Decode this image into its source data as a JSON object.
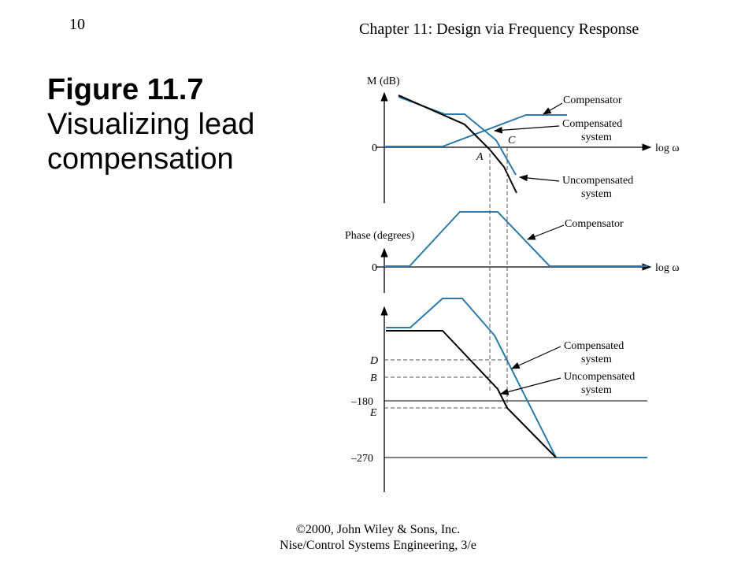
{
  "slide_number": "10",
  "chapter_title": "Chapter 11: Design via Frequency Response",
  "figure": {
    "label": "Figure 11.7",
    "caption_line1": "Visualizing lead",
    "caption_line2": "compensation"
  },
  "footer": {
    "line1": "©2000, John Wiley & Sons, Inc.",
    "line2": "Nise/Control Systems Engineering, 3/e"
  },
  "magnitude_plot": {
    "y_axis_label_var": "M",
    "y_axis_label_unit": " (dB)",
    "zero_label": "0",
    "x_axis_label": "log ",
    "x_axis_symbol": "ω",
    "point_A": "A",
    "point_C": "C",
    "compensator_label": "Compensator",
    "compensated_label_1": "Compensated",
    "compensated_label_2": "system",
    "uncompensated_label_1": "Uncompensated",
    "uncompensated_label_2": "system"
  },
  "phase_plot_1": {
    "y_axis_label": "Phase (degrees)",
    "zero_label": "0",
    "x_axis_label": "log ",
    "x_axis_symbol": "ω",
    "compensator_label": "Compensator"
  },
  "phase_plot_2": {
    "label_D": "D",
    "label_B": "B",
    "label_neg180": "–180",
    "label_E": "E",
    "label_neg270": "–270",
    "compensated_label_1": "Compensated",
    "compensated_label_2": "system",
    "uncompensated_label_1": "Uncompensated",
    "uncompensated_label_2": "system"
  },
  "colors": {
    "compensator_blue": "#2b7aa8",
    "axis_black": "#000000",
    "dashed_gray": "#555555"
  }
}
